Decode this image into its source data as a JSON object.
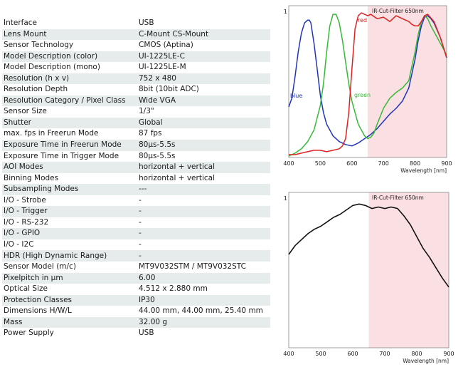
{
  "specs": [
    {
      "label": "Interface",
      "value": "USB"
    },
    {
      "label": "Lens Mount",
      "value": "C-Mount CS-Mount"
    },
    {
      "label": "Sensor Technology",
      "value": "CMOS (Aptina)"
    },
    {
      "label": "Model Description (color)",
      "value": "UI-1225LE-C"
    },
    {
      "label": "Model Description (mono)",
      "value": "UI-1225LE-M"
    },
    {
      "label": "Resolution (h x v)",
      "value": "752 x 480"
    },
    {
      "label": "Resolution Depth",
      "value": "8bit (10bit ADC)"
    },
    {
      "label": "Resolution Category / Pixel Class",
      "value": "Wide VGA"
    },
    {
      "label": "Sensor Size",
      "value": "1/3\""
    },
    {
      "label": "Shutter",
      "value": "Global"
    },
    {
      "label": "max. fps in Freerun Mode",
      "value": "87 fps"
    },
    {
      "label": "Exposure Time in Freerun Mode",
      "value": "80µs-5.5s"
    },
    {
      "label": "Exposure Time in Trigger Mode",
      "value": "80µs-5.5s"
    },
    {
      "label": "AOI Modes",
      "value": "horizontal + vertical"
    },
    {
      "label": "Binning Modes",
      "value": "horizontal + vertical"
    },
    {
      "label": "Subsampling Modes",
      "value": "---"
    },
    {
      "label": "I/O - Strobe",
      "value": "-"
    },
    {
      "label": "I/O - Trigger",
      "value": "-"
    },
    {
      "label": "I/O - RS-232",
      "value": "-"
    },
    {
      "label": "I/O - GPIO",
      "value": "-"
    },
    {
      "label": "I/O - I2C",
      "value": "-"
    },
    {
      "label": "HDR (High Dynamic Range)",
      "value": "-"
    },
    {
      "label": "Sensor Model (m/c)",
      "value": "MT9V032STM / MT9V032STC"
    },
    {
      "label": "Pixelpitch in µm",
      "value": "6.00"
    },
    {
      "label": "Optical Size",
      "value": "4.512 x 2.880 mm"
    },
    {
      "label": "Protection Classes",
      "value": "IP30"
    },
    {
      "label": "Dimensions H/W/L",
      "value": "44.00 mm, 44.00 mm, 25.40 mm"
    },
    {
      "label": "Mass",
      "value": "32.00 g"
    },
    {
      "label": "Power Supply",
      "value": "USB"
    }
  ],
  "chart_data": [
    {
      "type": "line",
      "xlabel": "Wavelength [nm]",
      "ylabel": "",
      "xlim": [
        400,
        900
      ],
      "ylim": [
        0,
        1
      ],
      "x_ticks": [
        "400",
        "500",
        "600",
        "700",
        "800",
        "900"
      ],
      "y_tick_label": "1",
      "annotation": "IR-Cut-Filter 650nm",
      "shaded_region": [
        650,
        900
      ],
      "shade_color": "#fbe0e3",
      "series": [
        {
          "name": "blue",
          "color": "#2233bb",
          "x": [
            400,
            410,
            420,
            430,
            440,
            450,
            460,
            465,
            470,
            480,
            490,
            500,
            510,
            520,
            540,
            560,
            580,
            600,
            620,
            640,
            660,
            680,
            700,
            720,
            740,
            760,
            780,
            800,
            810,
            820,
            830,
            840,
            850,
            860,
            880,
            900
          ],
          "y": [
            0.34,
            0.4,
            0.55,
            0.72,
            0.85,
            0.92,
            0.94,
            0.94,
            0.92,
            0.78,
            0.6,
            0.42,
            0.3,
            0.22,
            0.14,
            0.1,
            0.08,
            0.07,
            0.09,
            0.12,
            0.15,
            0.19,
            0.24,
            0.29,
            0.33,
            0.38,
            0.47,
            0.67,
            0.8,
            0.9,
            0.96,
            0.97,
            0.95,
            0.92,
            0.82,
            0.68
          ]
        },
        {
          "name": "green",
          "color": "#33bb33",
          "x": [
            400,
            420,
            440,
            460,
            480,
            500,
            510,
            520,
            530,
            540,
            550,
            560,
            570,
            580,
            590,
            600,
            620,
            640,
            650,
            660,
            670,
            680,
            700,
            720,
            740,
            760,
            780,
            800,
            810,
            820,
            830,
            840,
            850,
            860,
            880,
            900
          ],
          "y": [
            0.0,
            0.02,
            0.05,
            0.1,
            0.18,
            0.35,
            0.5,
            0.72,
            0.9,
            0.98,
            0.98,
            0.92,
            0.8,
            0.65,
            0.5,
            0.38,
            0.22,
            0.14,
            0.12,
            0.13,
            0.16,
            0.22,
            0.33,
            0.4,
            0.44,
            0.47,
            0.52,
            0.72,
            0.84,
            0.93,
            0.97,
            0.95,
            0.9,
            0.86,
            0.78,
            0.7
          ]
        },
        {
          "name": "red",
          "color": "#dd2222",
          "x": [
            400,
            420,
            440,
            460,
            480,
            500,
            520,
            540,
            560,
            570,
            580,
            590,
            600,
            610,
            620,
            630,
            640,
            650,
            660,
            680,
            700,
            720,
            740,
            760,
            780,
            790,
            800,
            810,
            820,
            830,
            840,
            860,
            880,
            900
          ],
          "y": [
            0.01,
            0.01,
            0.02,
            0.03,
            0.04,
            0.04,
            0.03,
            0.04,
            0.05,
            0.07,
            0.12,
            0.3,
            0.6,
            0.88,
            0.97,
            0.99,
            0.98,
            0.97,
            0.98,
            0.95,
            0.96,
            0.93,
            0.97,
            0.95,
            0.93,
            0.91,
            0.9,
            0.9,
            0.93,
            0.97,
            0.98,
            0.93,
            0.82,
            0.68
          ]
        }
      ]
    },
    {
      "type": "line",
      "xlabel": "Wavelength [nm]",
      "ylabel": "",
      "xlim": [
        400,
        900
      ],
      "ylim": [
        0,
        1
      ],
      "x_ticks": [
        "400",
        "500",
        "600",
        "700",
        "800",
        "900"
      ],
      "y_tick_label": "1",
      "annotation": "IR-Cut-Filter 650nm",
      "shaded_region": [
        650,
        900
      ],
      "shade_color": "#fbe0e3",
      "series": [
        {
          "name": "",
          "color": "#111111",
          "x": [
            400,
            420,
            440,
            460,
            480,
            500,
            520,
            540,
            560,
            580,
            600,
            620,
            640,
            660,
            680,
            700,
            720,
            740,
            760,
            780,
            800,
            820,
            840,
            860,
            880,
            900
          ],
          "y": [
            0.62,
            0.68,
            0.72,
            0.76,
            0.79,
            0.81,
            0.84,
            0.87,
            0.89,
            0.92,
            0.95,
            0.96,
            0.95,
            0.93,
            0.94,
            0.93,
            0.94,
            0.93,
            0.88,
            0.82,
            0.74,
            0.66,
            0.6,
            0.53,
            0.46,
            0.4
          ]
        }
      ]
    }
  ]
}
